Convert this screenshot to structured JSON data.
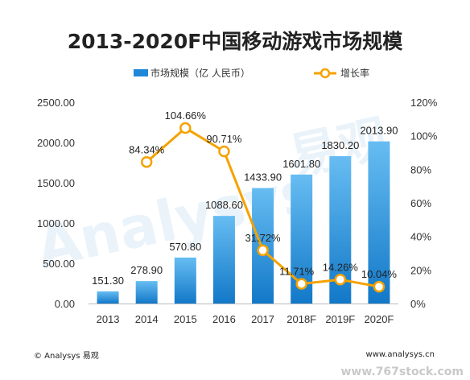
{
  "chart_data": {
    "type": "bar",
    "title": "2013-2020F中国移动游戏市场规模",
    "categories": [
      "2013",
      "2014",
      "2015",
      "2016",
      "2017",
      "2018F",
      "2019F",
      "2020F"
    ],
    "series": [
      {
        "name": "市场规模（亿 人民币）",
        "type": "bar",
        "axis": "left",
        "values": [
          151.3,
          278.9,
          570.8,
          1088.6,
          1433.9,
          1601.8,
          1830.2,
          2013.9
        ],
        "labels": [
          "151.30",
          "278.90",
          "570.80",
          "1088.60",
          "1433.90",
          "1601.80",
          "1830.20",
          "2013.90"
        ],
        "color": "#1e88d8"
      },
      {
        "name": "增长率",
        "type": "line",
        "axis": "right",
        "values": [
          null,
          84.34,
          104.66,
          90.71,
          31.72,
          11.71,
          14.26,
          10.04
        ],
        "labels": [
          "",
          "84.34%",
          "104.66%",
          "90.71%",
          "31.72%",
          "11.71%",
          "14.26%",
          "10.04%"
        ],
        "color": "#f5a200"
      }
    ],
    "y_left": {
      "range": [
        0,
        2500
      ],
      "ticks": [
        0,
        500,
        1000,
        1500,
        2000,
        2500
      ],
      "tick_labels": [
        "0.00",
        "500.00",
        "1000.00",
        "1500.00",
        "2000.00",
        "2500.00"
      ]
    },
    "y_right": {
      "range": [
        0,
        120
      ],
      "ticks": [
        0,
        20,
        40,
        60,
        80,
        100,
        120
      ],
      "tick_labels": [
        "0%",
        "20%",
        "40%",
        "60%",
        "80%",
        "100%",
        "120%"
      ]
    },
    "grid": false,
    "legend_position": "top-center"
  },
  "footer": {
    "source": "© Analysys 易观",
    "website": "www.analysys.cn"
  },
  "watermark": {
    "site": "www.767stock.com"
  },
  "colors": {
    "bar_light": "#67bdf2",
    "bar_dark": "#1278c8",
    "line": "#f5a200",
    "axis": "#bbbbbb",
    "text": "#222222"
  }
}
